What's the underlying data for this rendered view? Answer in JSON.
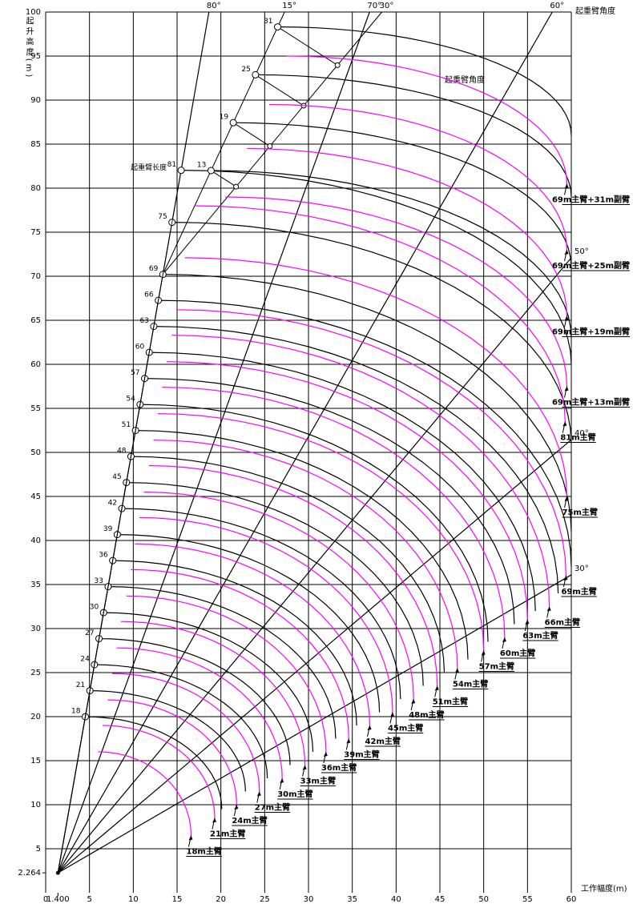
{
  "chart_data": {
    "type": "line",
    "y_label": "起升高度(m)",
    "x_label": "工作幅度(m)",
    "boom_label": "起重臂长度",
    "angle_label": "起重臂角度",
    "jib_angle_label": "起重臂角度",
    "xlim": [
      0,
      60
    ],
    "ylim": [
      0,
      100
    ],
    "xticks": [
      0,
      {
        "value": 1.4,
        "label": "1.400"
      },
      5,
      10,
      15,
      20,
      25,
      30,
      35,
      40,
      45,
      50,
      55,
      60
    ],
    "yticks": [
      {
        "value": 2.264,
        "label": "2.264"
      },
      5,
      10,
      15,
      20,
      25,
      30,
      35,
      40,
      45,
      50,
      55,
      60,
      65,
      70,
      75,
      80,
      85,
      90,
      95,
      100
    ],
    "grid": true,
    "boom_foot": {
      "x": 1.4,
      "y": 2.264
    },
    "boom_angles": [
      {
        "value": 80,
        "label": "80°"
      },
      {
        "value": 70,
        "label": "70°"
      },
      {
        "value": 60,
        "label": "60°"
      },
      {
        "value": 50,
        "label": "50°"
      },
      {
        "value": 40,
        "label": "40°"
      },
      {
        "value": 30,
        "label": "30°"
      }
    ],
    "jib_angles": [
      {
        "value": 15,
        "label": "15°"
      },
      {
        "value": 30,
        "label": "30°"
      }
    ],
    "hook_color": "#ff00ff",
    "outer_color": "#000000",
    "series": [
      {
        "name": "18m主臂",
        "boom": 18,
        "hook_x": [
          6.0,
          16.6
        ],
        "hook_y": [
          16.0,
          6.5
        ],
        "outer_end": [
          20.1,
          9.5
        ]
      },
      {
        "name": "21m主臂",
        "boom": 21,
        "hook_x": [
          6.5,
          19.3
        ],
        "hook_y": [
          19.0,
          8.5
        ],
        "outer_end": [
          22.8,
          11.5
        ]
      },
      {
        "name": "24m主臂",
        "boom": 24,
        "hook_x": [
          7.1,
          21.8
        ],
        "hook_y": [
          21.9,
          10
        ],
        "outer_end": [
          25.3,
          13
        ]
      },
      {
        "name": "27m主臂",
        "boom": 27,
        "hook_x": [
          7.6,
          24.4
        ],
        "hook_y": [
          24.9,
          11.5
        ],
        "outer_end": [
          27.9,
          14.5
        ]
      },
      {
        "name": "30m主臂",
        "boom": 30,
        "hook_x": [
          8.1,
          27
        ],
        "hook_y": [
          27.8,
          13
        ],
        "outer_end": [
          30.5,
          16
        ]
      },
      {
        "name": "33m主臂",
        "boom": 33,
        "hook_x": [
          8.6,
          29.6
        ],
        "hook_y": [
          30.8,
          14.5
        ],
        "outer_end": [
          33.1,
          17.5
        ]
      },
      {
        "name": "36m主臂",
        "boom": 36,
        "hook_x": [
          9.2,
          32
        ],
        "hook_y": [
          33.7,
          16
        ],
        "outer_end": [
          35.5,
          19
        ]
      },
      {
        "name": "39m主臂",
        "boom": 39,
        "hook_x": [
          9.7,
          34.6
        ],
        "hook_y": [
          36.7,
          17.5
        ],
        "outer_end": [
          38.1,
          20.5
        ]
      },
      {
        "name": "42m主臂",
        "boom": 42,
        "hook_x": [
          10.2,
          37
        ],
        "hook_y": [
          39.6,
          19
        ],
        "outer_end": [
          40.5,
          22
        ]
      },
      {
        "name": "45m主臂",
        "boom": 45,
        "hook_x": [
          10.7,
          39.6
        ],
        "hook_y": [
          42.6,
          20.5
        ],
        "outer_end": [
          43.1,
          23.5
        ]
      },
      {
        "name": "48m主臂",
        "boom": 48,
        "hook_x": [
          11.2,
          42
        ],
        "hook_y": [
          45.5,
          22
        ],
        "outer_end": [
          45.5,
          25
        ]
      },
      {
        "name": "51m主臂",
        "boom": 51,
        "hook_x": [
          11.8,
          44.7
        ],
        "hook_y": [
          48.5,
          23.5
        ],
        "outer_end": [
          48.2,
          26.5
        ]
      },
      {
        "name": "54m主臂",
        "boom": 54,
        "hook_x": [
          12.3,
          47
        ],
        "hook_y": [
          51.4,
          25.5
        ],
        "outer_end": [
          50.5,
          28.5
        ]
      },
      {
        "name": "57m主臂",
        "boom": 57,
        "hook_x": [
          12.8,
          50
        ],
        "hook_y": [
          54.4,
          27.5
        ],
        "outer_end": [
          53.5,
          30.5
        ]
      },
      {
        "name": "60m主臂",
        "boom": 60,
        "hook_x": [
          13.3,
          52.4
        ],
        "hook_y": [
          57.4,
          29
        ],
        "outer_end": [
          55.9,
          32
        ]
      },
      {
        "name": "63m主臂",
        "boom": 63,
        "hook_x": [
          13.8,
          55
        ],
        "hook_y": [
          60.3,
          31
        ],
        "outer_end": [
          58.5,
          34
        ]
      },
      {
        "name": "66m主臂",
        "boom": 66,
        "hook_x": [
          14.4,
          57.5
        ],
        "hook_y": [
          63.3,
          32.5
        ],
        "outer_end": [
          60,
          37
        ]
      },
      {
        "name": "69m主臂",
        "boom": 69,
        "hook_x": [
          14.9,
          59.4
        ],
        "hook_y": [
          66.2,
          36
        ],
        "outer_end": [
          60,
          41
        ]
      },
      {
        "name": "75m主臂",
        "boom": 75,
        "hook_x": [
          15.9,
          59.5
        ],
        "hook_y": [
          72.1,
          45
        ],
        "outer_end": [
          60,
          51
        ]
      },
      {
        "name": "81m主臂",
        "boom": 81,
        "hook_x": [
          17,
          59.3
        ],
        "hook_y": [
          78,
          53.5
        ],
        "outer_end": [
          60,
          60
        ]
      },
      {
        "name": "69m主臂+13m副臂",
        "boom": 69,
        "jib": 13,
        "hook_x": [
          20.5,
          59.5
        ],
        "hook_y": [
          79,
          57.5
        ],
        "outer_end": [
          60,
          63
        ]
      },
      {
        "name": "69m主臂+19m副臂",
        "boom": 69,
        "jib": 19,
        "hook_x": [
          23,
          59.5
        ],
        "hook_y": [
          84.5,
          65.5
        ],
        "outer_end": [
          60,
          71
        ]
      },
      {
        "name": "69m主臂+25m副臂",
        "boom": 69,
        "jib": 25,
        "hook_x": [
          25.5,
          59.5
        ],
        "hook_y": [
          89.5,
          73
        ],
        "outer_end": [
          60,
          79
        ]
      },
      {
        "name": "69m主臂+31m副臂",
        "boom": 69,
        "jib": 31,
        "hook_x": [
          27.5,
          59.5
        ],
        "hook_y": [
          95,
          80.5
        ],
        "outer_end": [
          60,
          86
        ]
      }
    ]
  }
}
